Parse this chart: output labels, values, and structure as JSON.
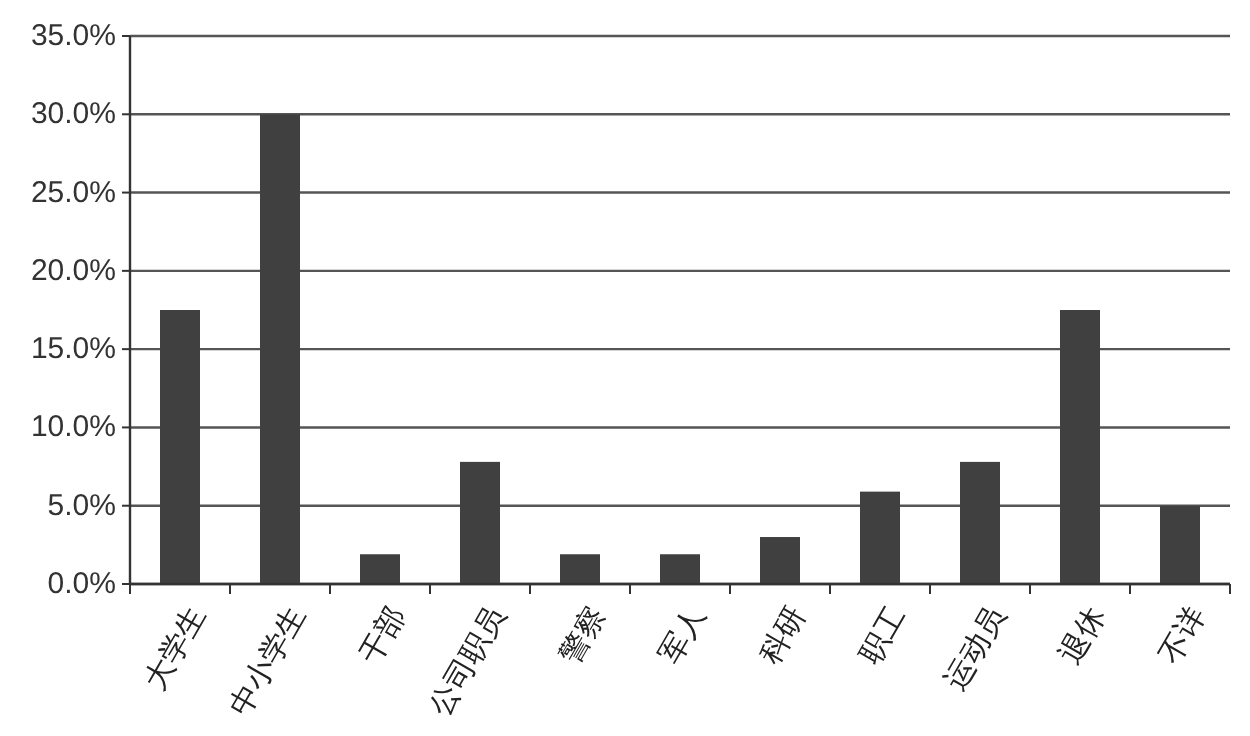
{
  "chart_data": {
    "type": "bar",
    "categories": [
      "大学生",
      "中小学生",
      "干部",
      "公司职员",
      "警察",
      "军人",
      "科研",
      "职工",
      "运动员",
      "退休",
      "不详"
    ],
    "values": [
      17.5,
      30.0,
      1.9,
      7.8,
      1.9,
      1.9,
      3.0,
      5.9,
      7.8,
      17.5,
      5.0
    ],
    "color": "#404040",
    "ylim": [
      0,
      35
    ],
    "yticks": [
      {
        "value": 0,
        "label": "0.0%"
      },
      {
        "value": 5,
        "label": "5.0%"
      },
      {
        "value": 10,
        "label": "10.0%"
      },
      {
        "value": 15,
        "label": "15.0%"
      },
      {
        "value": 20,
        "label": "20.0%"
      },
      {
        "value": 25,
        "label": "25.0%"
      },
      {
        "value": 30,
        "label": "30.0%"
      },
      {
        "value": 35,
        "label": "35.0%"
      }
    ],
    "grid": "y"
  }
}
